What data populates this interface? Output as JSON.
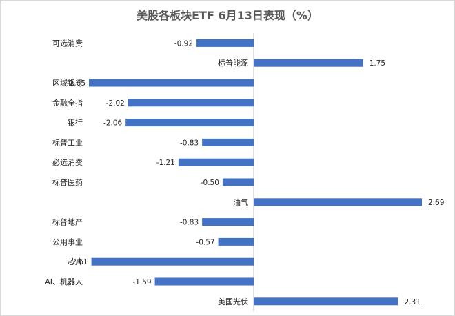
{
  "chart_data": {
    "type": "bar",
    "orientation": "horizontal",
    "title": "美股各板块ETF  6月13日表现（%）",
    "categories": [
      "可选消费",
      "标普能源",
      "区域银行",
      "金融全指",
      "银行",
      "标普工业",
      "必选消费",
      "标普医药",
      "油气",
      "标普地产",
      "公用事业",
      "芯片",
      "AI、机器人",
      "美国光伏"
    ],
    "values": [
      -0.92,
      1.75,
      -2.65,
      -2.02,
      -2.06,
      -0.83,
      -1.21,
      -0.5,
      2.69,
      -0.83,
      -0.57,
      -2.61,
      -1.59,
      2.31
    ],
    "value_labels": [
      "-0.92",
      "1.75",
      "-2.65",
      "-2.02",
      "-2.06",
      "-0.83",
      "-1.21",
      "-0.50",
      "2.69",
      "-0.83",
      "-0.57",
      "-2.61",
      "-1.59",
      "2.31"
    ],
    "xlim": [
      -2.65,
      2.69
    ],
    "grid": false,
    "legend": "none",
    "bar_color": "#4472c4",
    "axis_color": "#bfbfbf"
  }
}
